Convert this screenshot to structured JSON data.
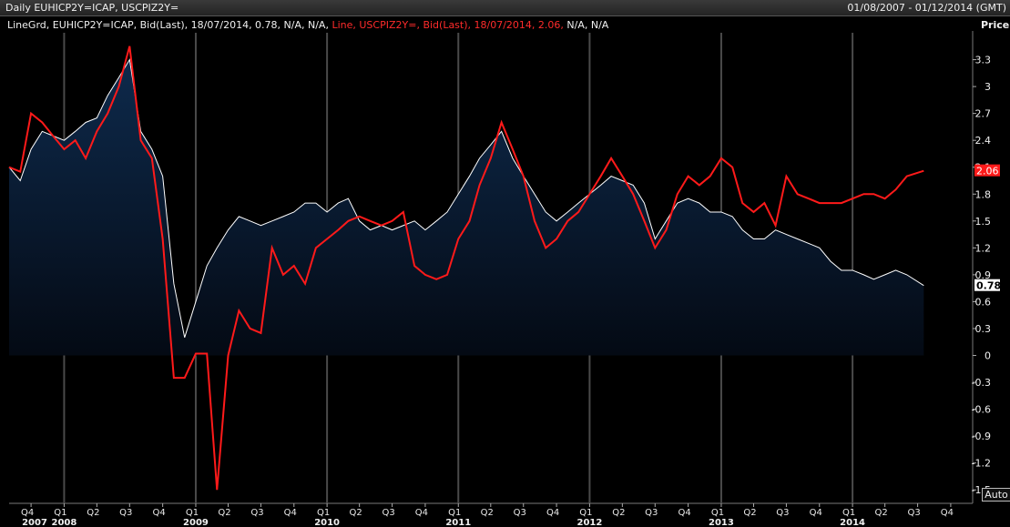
{
  "window": {
    "title": "Daily EUHICP2Y=ICAP, USCPIZ2Y=",
    "range": "01/08/2007 - 01/12/2014 (GMT)"
  },
  "legend": {
    "part_white": "LineGrd, EUHICP2Y=ICAP, Bid(Last), 18/07/2014, 0.78, N/A, N/A,",
    "part_red": "Line, USCPIZ2Y=, Bid(Last), 18/07/2014, 2.06,",
    "part_tail": "N/A, N/A"
  },
  "axis": {
    "price_label": "Price",
    "auto_label": "Auto"
  },
  "colors": {
    "eu": "#ffffff",
    "us": "#ff1a1a",
    "fill_top": "#0e2a4c",
    "fill_bottom": "#040a14",
    "grid": "#4a4a4a"
  },
  "chart_data": {
    "type": "line",
    "xlabel": "",
    "ylabel": "Price",
    "ylim": [
      -1.65,
      3.6
    ],
    "yticks": [
      -1.5,
      -1.2,
      -0.9,
      -0.6,
      -0.3,
      0,
      0.3,
      0.6,
      0.9,
      1.2,
      1.5,
      1.8,
      2.1,
      2.4,
      2.7,
      3,
      3.3
    ],
    "ytick_labels": [
      "-1.5",
      "-1.2",
      "-0.9",
      "-0.6",
      "-0.3",
      "0",
      "0.3",
      "0.6",
      "0.9",
      "1.2",
      "1.5",
      "1.8",
      "2.1",
      "2.4",
      "2.7",
      "3",
      "3.3"
    ],
    "xrange": [
      "2007-08-01",
      "2014-12-01"
    ],
    "quarter_ticks": [
      {
        "label": "Q4",
        "date": "2007-10-01"
      },
      {
        "label": "Q1",
        "date": "2008-01-01"
      },
      {
        "label": "Q2",
        "date": "2008-04-01"
      },
      {
        "label": "Q3",
        "date": "2008-07-01"
      },
      {
        "label": "Q4",
        "date": "2008-10-01"
      },
      {
        "label": "Q1",
        "date": "2009-01-01"
      },
      {
        "label": "Q2",
        "date": "2009-04-01"
      },
      {
        "label": "Q3",
        "date": "2009-07-01"
      },
      {
        "label": "Q4",
        "date": "2009-10-01"
      },
      {
        "label": "Q1",
        "date": "2010-01-01"
      },
      {
        "label": "Q2",
        "date": "2010-04-01"
      },
      {
        "label": "Q3",
        "date": "2010-07-01"
      },
      {
        "label": "Q4",
        "date": "2010-10-01"
      },
      {
        "label": "Q1",
        "date": "2011-01-01"
      },
      {
        "label": "Q2",
        "date": "2011-04-01"
      },
      {
        "label": "Q3",
        "date": "2011-07-01"
      },
      {
        "label": "Q4",
        "date": "2011-10-01"
      },
      {
        "label": "Q1",
        "date": "2012-01-01"
      },
      {
        "label": "Q2",
        "date": "2012-04-01"
      },
      {
        "label": "Q3",
        "date": "2012-07-01"
      },
      {
        "label": "Q4",
        "date": "2012-10-01"
      },
      {
        "label": "Q1",
        "date": "2013-01-01"
      },
      {
        "label": "Q2",
        "date": "2013-04-01"
      },
      {
        "label": "Q3",
        "date": "2013-07-01"
      },
      {
        "label": "Q4",
        "date": "2013-10-01"
      },
      {
        "label": "Q1",
        "date": "2014-01-01"
      },
      {
        "label": "Q2",
        "date": "2014-04-01"
      },
      {
        "label": "Q3",
        "date": "2014-07-01"
      },
      {
        "label": "Q4",
        "date": "2014-10-01"
      }
    ],
    "year_labels": [
      {
        "label": "2007",
        "date": "2007-08-01"
      },
      {
        "label": "2008",
        "date": "2008-01-01"
      },
      {
        "label": "2009",
        "date": "2009-01-01"
      },
      {
        "label": "2010",
        "date": "2010-01-01"
      },
      {
        "label": "2011",
        "date": "2011-01-01"
      },
      {
        "label": "2012",
        "date": "2012-01-01"
      },
      {
        "label": "2013",
        "date": "2013-01-01"
      },
      {
        "label": "2014",
        "date": "2014-01-01"
      }
    ],
    "year_lines": [
      "2008-01-01",
      "2009-01-01",
      "2010-01-01",
      "2011-01-01",
      "2012-01-01",
      "2013-01-01",
      "2014-01-01"
    ],
    "last_values": [
      {
        "series": "USCPIZ2Y=",
        "value": "2.06"
      },
      {
        "series": "EUHICP2Y=ICAP",
        "value": "0.78"
      }
    ],
    "series": [
      {
        "name": "EUHICP2Y=ICAP",
        "style": "LineGrd",
        "x": [
          "2007-08-01",
          "2007-09-01",
          "2007-10-01",
          "2007-11-01",
          "2007-12-01",
          "2008-01-01",
          "2008-02-01",
          "2008-03-01",
          "2008-04-01",
          "2008-05-01",
          "2008-06-01",
          "2008-07-01",
          "2008-08-01",
          "2008-09-01",
          "2008-10-01",
          "2008-11-01",
          "2008-12-01",
          "2009-01-01",
          "2009-02-01",
          "2009-03-01",
          "2009-04-01",
          "2009-05-01",
          "2009-06-01",
          "2009-07-01",
          "2009-08-01",
          "2009-09-01",
          "2009-10-01",
          "2009-11-01",
          "2009-12-01",
          "2010-01-01",
          "2010-02-01",
          "2010-03-01",
          "2010-04-01",
          "2010-05-01",
          "2010-06-01",
          "2010-07-01",
          "2010-08-01",
          "2010-09-01",
          "2010-10-01",
          "2010-11-01",
          "2010-12-01",
          "2011-01-01",
          "2011-02-01",
          "2011-03-01",
          "2011-04-01",
          "2011-05-01",
          "2011-06-01",
          "2011-07-01",
          "2011-08-01",
          "2011-09-01",
          "2011-10-01",
          "2011-11-01",
          "2011-12-01",
          "2012-01-01",
          "2012-02-01",
          "2012-03-01",
          "2012-04-01",
          "2012-05-01",
          "2012-06-01",
          "2012-07-01",
          "2012-08-01",
          "2012-09-01",
          "2012-10-01",
          "2012-11-01",
          "2012-12-01",
          "2013-01-01",
          "2013-02-01",
          "2013-03-01",
          "2013-04-01",
          "2013-05-01",
          "2013-06-01",
          "2013-07-01",
          "2013-08-01",
          "2013-09-01",
          "2013-10-01",
          "2013-11-01",
          "2013-12-01",
          "2014-01-01",
          "2014-02-01",
          "2014-03-01",
          "2014-04-01",
          "2014-05-01",
          "2014-06-01",
          "2014-07-18"
        ],
        "values": [
          2.1,
          1.95,
          2.3,
          2.5,
          2.45,
          2.4,
          2.5,
          2.6,
          2.65,
          2.9,
          3.1,
          3.3,
          2.5,
          2.3,
          2.0,
          0.8,
          0.2,
          0.6,
          1.0,
          1.2,
          1.4,
          1.55,
          1.5,
          1.45,
          1.5,
          1.55,
          1.6,
          1.7,
          1.7,
          1.6,
          1.7,
          1.75,
          1.5,
          1.4,
          1.45,
          1.4,
          1.45,
          1.5,
          1.4,
          1.5,
          1.6,
          1.8,
          2.0,
          2.2,
          2.35,
          2.5,
          2.2,
          2.0,
          1.8,
          1.6,
          1.5,
          1.6,
          1.7,
          1.8,
          1.9,
          2.0,
          1.95,
          1.9,
          1.7,
          1.3,
          1.5,
          1.7,
          1.75,
          1.7,
          1.6,
          1.6,
          1.55,
          1.4,
          1.3,
          1.3,
          1.4,
          1.35,
          1.3,
          1.25,
          1.2,
          1.05,
          0.95,
          0.95,
          0.9,
          0.85,
          0.9,
          0.95,
          0.9,
          0.78
        ]
      },
      {
        "name": "USCPIZ2Y=",
        "style": "Line",
        "x": [
          "2007-08-01",
          "2007-09-01",
          "2007-10-01",
          "2007-11-01",
          "2007-12-01",
          "2008-01-01",
          "2008-02-01",
          "2008-03-01",
          "2008-04-01",
          "2008-05-01",
          "2008-06-01",
          "2008-07-01",
          "2008-08-01",
          "2008-09-01",
          "2008-10-01",
          "2008-11-01",
          "2008-12-01",
          "2009-01-01",
          "2009-02-01",
          "2009-03-01",
          "2009-04-01",
          "2009-05-01",
          "2009-06-01",
          "2009-07-01",
          "2009-08-01",
          "2009-09-01",
          "2009-10-01",
          "2009-11-01",
          "2009-12-01",
          "2010-01-01",
          "2010-02-01",
          "2010-03-01",
          "2010-04-01",
          "2010-05-01",
          "2010-06-01",
          "2010-07-01",
          "2010-08-01",
          "2010-09-01",
          "2010-10-01",
          "2010-11-01",
          "2010-12-01",
          "2011-01-01",
          "2011-02-01",
          "2011-03-01",
          "2011-04-01",
          "2011-05-01",
          "2011-06-01",
          "2011-07-01",
          "2011-08-01",
          "2011-09-01",
          "2011-10-01",
          "2011-11-01",
          "2011-12-01",
          "2012-01-01",
          "2012-02-01",
          "2012-03-01",
          "2012-04-01",
          "2012-05-01",
          "2012-06-01",
          "2012-07-01",
          "2012-08-01",
          "2012-09-01",
          "2012-10-01",
          "2012-11-01",
          "2012-12-01",
          "2013-01-01",
          "2013-02-01",
          "2013-03-01",
          "2013-04-01",
          "2013-05-01",
          "2013-06-01",
          "2013-07-01",
          "2013-08-01",
          "2013-09-01",
          "2013-10-01",
          "2013-11-01",
          "2013-12-01",
          "2014-01-01",
          "2014-02-01",
          "2014-03-01",
          "2014-04-01",
          "2014-05-01",
          "2014-06-01",
          "2014-07-18"
        ],
        "values": [
          2.1,
          2.05,
          2.7,
          2.6,
          2.45,
          2.3,
          2.4,
          2.2,
          2.5,
          2.7,
          3.0,
          3.45,
          2.4,
          2.2,
          1.3,
          -0.25,
          -0.25,
          0.02,
          0.02,
          -1.5,
          0.0,
          0.5,
          0.3,
          0.25,
          1.2,
          0.9,
          1.0,
          0.8,
          1.2,
          1.3,
          1.4,
          1.5,
          1.55,
          1.5,
          1.45,
          1.5,
          1.6,
          1.0,
          0.9,
          0.85,
          0.9,
          1.3,
          1.5,
          1.9,
          2.2,
          2.6,
          2.3,
          2.0,
          1.5,
          1.2,
          1.3,
          1.5,
          1.6,
          1.8,
          2.0,
          2.2,
          2.0,
          1.8,
          1.5,
          1.2,
          1.4,
          1.8,
          2.0,
          1.9,
          2.0,
          2.2,
          2.1,
          1.7,
          1.6,
          1.7,
          1.45,
          2.0,
          1.8,
          1.75,
          1.7,
          1.7,
          1.7,
          1.75,
          1.8,
          1.8,
          1.75,
          1.85,
          2.0,
          2.06
        ]
      }
    ]
  }
}
